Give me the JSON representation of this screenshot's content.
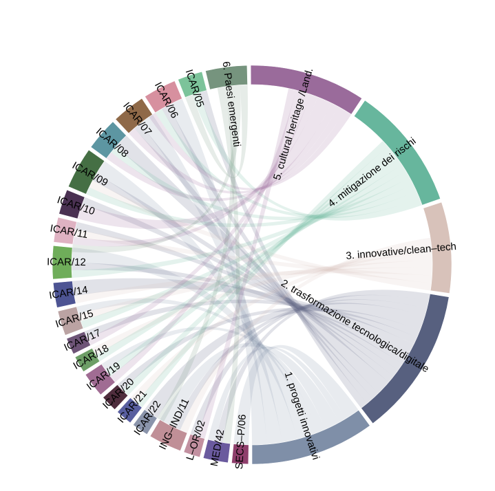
{
  "chart_data": {
    "type": "chord",
    "title": "",
    "groups": [
      {
        "label": "1. progetti innovativi",
        "color": "#7f8fa8"
      },
      {
        "label": "2. trasformazione tecnologica/digitale",
        "color": "#57607f"
      },
      {
        "label": "3. innovative/clean–tech",
        "color": "#d8c2ba"
      },
      {
        "label": "4. mitigazione dei rischi",
        "color": "#67b69d"
      },
      {
        "label": "5. cultural heritage /Land.",
        "color": "#9a6b9b"
      },
      {
        "label": "6. Paesi emergenti",
        "color": "#76947e"
      },
      {
        "label": "ICAR/05",
        "color": "#7cc39a"
      },
      {
        "label": "ICAR/06",
        "color": "#d7909f"
      },
      {
        "label": "ICAR/07",
        "color": "#8f6948"
      },
      {
        "label": "ICAR/08",
        "color": "#5d96a2"
      },
      {
        "label": "ICAR/09",
        "color": "#456f44"
      },
      {
        "label": "ICAR/10",
        "color": "#4a3152"
      },
      {
        "label": "ICAR/11",
        "color": "#dfb2c2"
      },
      {
        "label": "ICAR/12",
        "color": "#6fad5a"
      },
      {
        "label": "ICAR/14",
        "color": "#4d5493"
      },
      {
        "label": "ICAR/15",
        "color": "#bba3a3"
      },
      {
        "label": "ICAR/17",
        "color": "#6e5477"
      },
      {
        "label": "ICAR/18",
        "color": "#6d9e66"
      },
      {
        "label": "ICAR/19",
        "color": "#a06c93"
      },
      {
        "label": "ICAR/20",
        "color": "#4f2d3d"
      },
      {
        "label": "ICAR/21",
        "color": "#595fa0"
      },
      {
        "label": "ICAR/22",
        "color": "#8a94ab"
      },
      {
        "label": "ING–IND/11",
        "color": "#c08f97"
      },
      {
        "label": "L–OR/02",
        "color": "#c290a0"
      },
      {
        "label": "MED/42",
        "color": "#6a5a9e"
      },
      {
        "label": "SECS–P/06",
        "color": "#8f3f6c"
      }
    ],
    "sizes": [
      15,
      18,
      11,
      15,
      14,
      5,
      3,
      4,
      4,
      4,
      5,
      3,
      3,
      4,
      3,
      3,
      2,
      2,
      3,
      2,
      2,
      2,
      4,
      2,
      3,
      2
    ],
    "links": [
      {
        "source": 0,
        "target": 7,
        "value": 2
      },
      {
        "source": 0,
        "target": 8,
        "value": 2
      },
      {
        "source": 0,
        "target": 10,
        "value": 2
      },
      {
        "source": 0,
        "target": 13,
        "value": 2
      },
      {
        "source": 0,
        "target": 15,
        "value": 1
      },
      {
        "source": 0,
        "target": 18,
        "value": 1
      },
      {
        "source": 0,
        "target": 22,
        "value": 2
      },
      {
        "source": 0,
        "target": 24,
        "value": 1
      },
      {
        "source": 0,
        "target": 25,
        "value": 2
      },
      {
        "source": 1,
        "target": 6,
        "value": 1
      },
      {
        "source": 1,
        "target": 7,
        "value": 1
      },
      {
        "source": 1,
        "target": 8,
        "value": 1
      },
      {
        "source": 1,
        "target": 9,
        "value": 2
      },
      {
        "source": 1,
        "target": 10,
        "value": 1
      },
      {
        "source": 1,
        "target": 11,
        "value": 1
      },
      {
        "source": 1,
        "target": 12,
        "value": 1
      },
      {
        "source": 1,
        "target": 13,
        "value": 1
      },
      {
        "source": 1,
        "target": 14,
        "value": 2
      },
      {
        "source": 1,
        "target": 16,
        "value": 1
      },
      {
        "source": 1,
        "target": 19,
        "value": 1
      },
      {
        "source": 1,
        "target": 21,
        "value": 2
      },
      {
        "source": 1,
        "target": 22,
        "value": 1
      },
      {
        "source": 1,
        "target": 23,
        "value": 1
      },
      {
        "source": 1,
        "target": 24,
        "value": 1
      },
      {
        "source": 2,
        "target": 10,
        "value": 1
      },
      {
        "source": 2,
        "target": 12,
        "value": 1
      },
      {
        "source": 2,
        "target": 14,
        "value": 1
      },
      {
        "source": 2,
        "target": 15,
        "value": 1
      },
      {
        "source": 2,
        "target": 17,
        "value": 1
      },
      {
        "source": 2,
        "target": 20,
        "value": 1
      },
      {
        "source": 2,
        "target": 22,
        "value": 1
      },
      {
        "source": 3,
        "target": 6,
        "value": 1
      },
      {
        "source": 3,
        "target": 7,
        "value": 1
      },
      {
        "source": 3,
        "target": 9,
        "value": 1
      },
      {
        "source": 3,
        "target": 10,
        "value": 1
      },
      {
        "source": 3,
        "target": 13,
        "value": 1
      },
      {
        "source": 3,
        "target": 15,
        "value": 1
      },
      {
        "source": 3,
        "target": 17,
        "value": 1
      },
      {
        "source": 3,
        "target": 18,
        "value": 1
      },
      {
        "source": 3,
        "target": 19,
        "value": 1
      },
      {
        "source": 3,
        "target": 20,
        "value": 1
      },
      {
        "source": 4,
        "target": 7,
        "value": 1
      },
      {
        "source": 4,
        "target": 8,
        "value": 1
      },
      {
        "source": 4,
        "target": 9,
        "value": 1
      },
      {
        "source": 4,
        "target": 11,
        "value": 2
      },
      {
        "source": 4,
        "target": 12,
        "value": 1
      },
      {
        "source": 4,
        "target": 16,
        "value": 1
      },
      {
        "source": 4,
        "target": 18,
        "value": 1
      },
      {
        "source": 4,
        "target": 23,
        "value": 1
      },
      {
        "source": 5,
        "target": 6,
        "value": 1
      },
      {
        "source": 5,
        "target": 12,
        "value": 1
      },
      {
        "source": 5,
        "target": 21,
        "value": 1
      },
      {
        "source": 5,
        "target": 24,
        "value": 1
      }
    ]
  }
}
